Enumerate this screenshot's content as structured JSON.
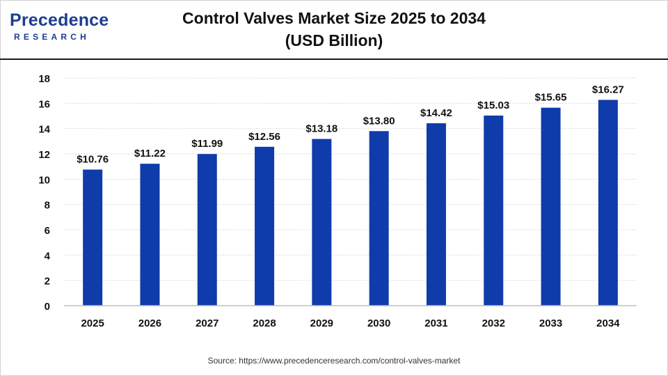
{
  "brand": {
    "name_prefix": "P",
    "name_rest": "recedence",
    "sub": "RESEARCH"
  },
  "header": {
    "title_line1": "Control Valves Market Size 2025 to 2034",
    "title_line2": "(USD Billion)"
  },
  "footer": {
    "source": "Source: https://www.precedenceresearch.com/control-valves-market"
  },
  "colors": {
    "bar": "#0f3bab",
    "brand": "#1c3d8f"
  },
  "chart_data": {
    "type": "bar",
    "title": "Control Valves Market Size 2025 to 2034 (USD Billion)",
    "xlabel": "",
    "ylabel": "",
    "categories": [
      "2025",
      "2026",
      "2027",
      "2028",
      "2029",
      "2030",
      "2031",
      "2032",
      "2033",
      "2034"
    ],
    "values": [
      10.76,
      11.22,
      11.99,
      12.56,
      13.18,
      13.8,
      14.42,
      15.03,
      15.65,
      16.27
    ],
    "data_labels": [
      "$10.76",
      "$11.22",
      "$11.99",
      "$12.56",
      "$13.18",
      "$13.80",
      "$14.42",
      "$15.03",
      "$15.65",
      "$16.27"
    ],
    "ylim": [
      0,
      18
    ],
    "yticks": [
      0,
      2,
      4,
      6,
      8,
      10,
      12,
      14,
      16,
      18
    ],
    "grid": true,
    "legend": "none"
  }
}
